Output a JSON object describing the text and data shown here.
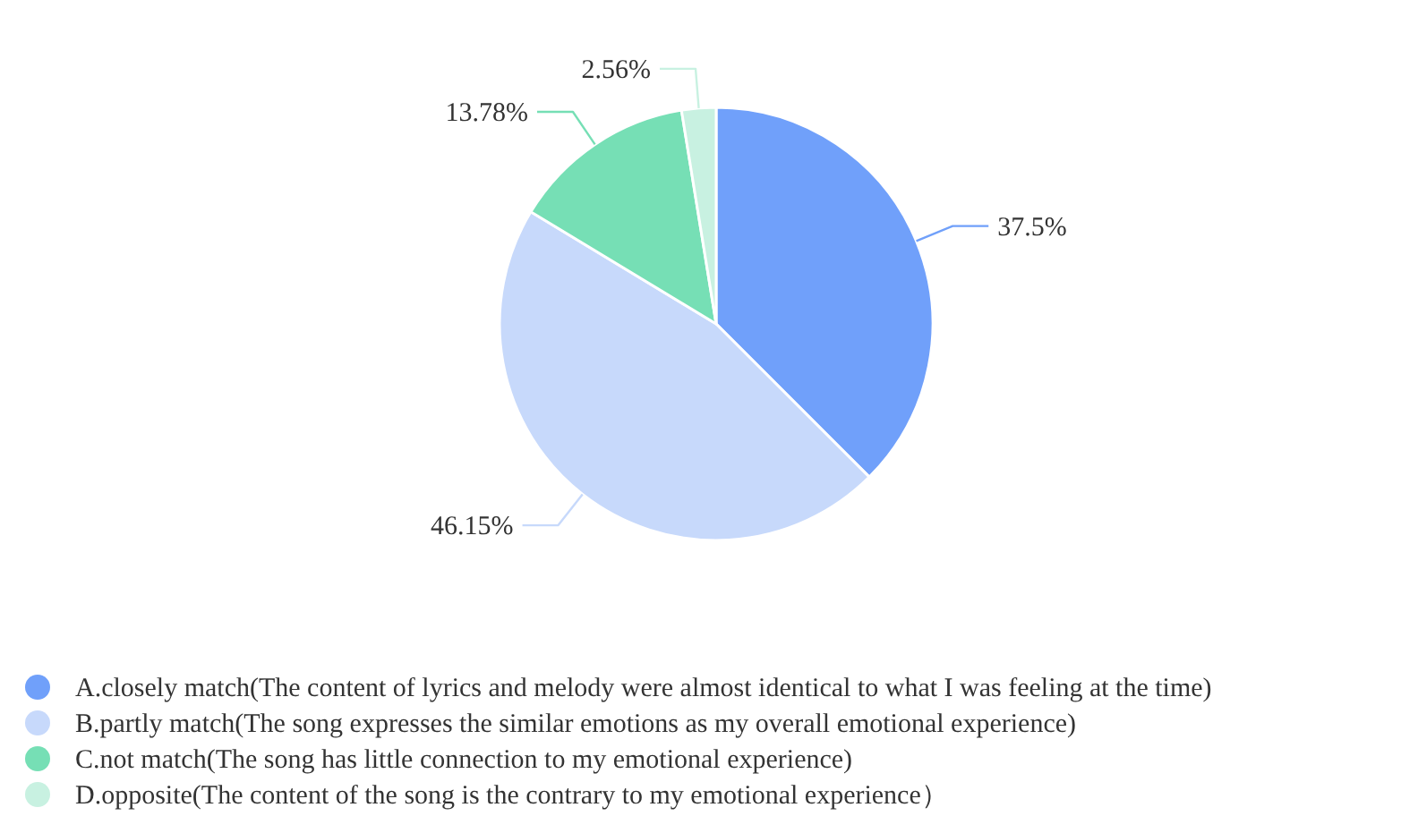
{
  "chart_data": {
    "type": "pie",
    "categories": [
      "A.closely match(The content of lyrics and melody were almost identical to what I was feeling at the time)",
      "B.partly match(The song expresses the similar emotions as my overall emotional experience)",
      "C.not match(The song has little connection to my emotional experience)",
      "D.opposite(The content of the song is the contrary to my emotional experience）"
    ],
    "values": [
      37.5,
      46.15,
      13.78,
      2.56
    ],
    "colors": [
      "#70a0fa",
      "#c7d9fb",
      "#76dfb5",
      "#c8f1e1"
    ],
    "value_labels": [
      "37.5%",
      "46.15%",
      "13.78%",
      "2.56%"
    ],
    "legend": "bottom left"
  }
}
